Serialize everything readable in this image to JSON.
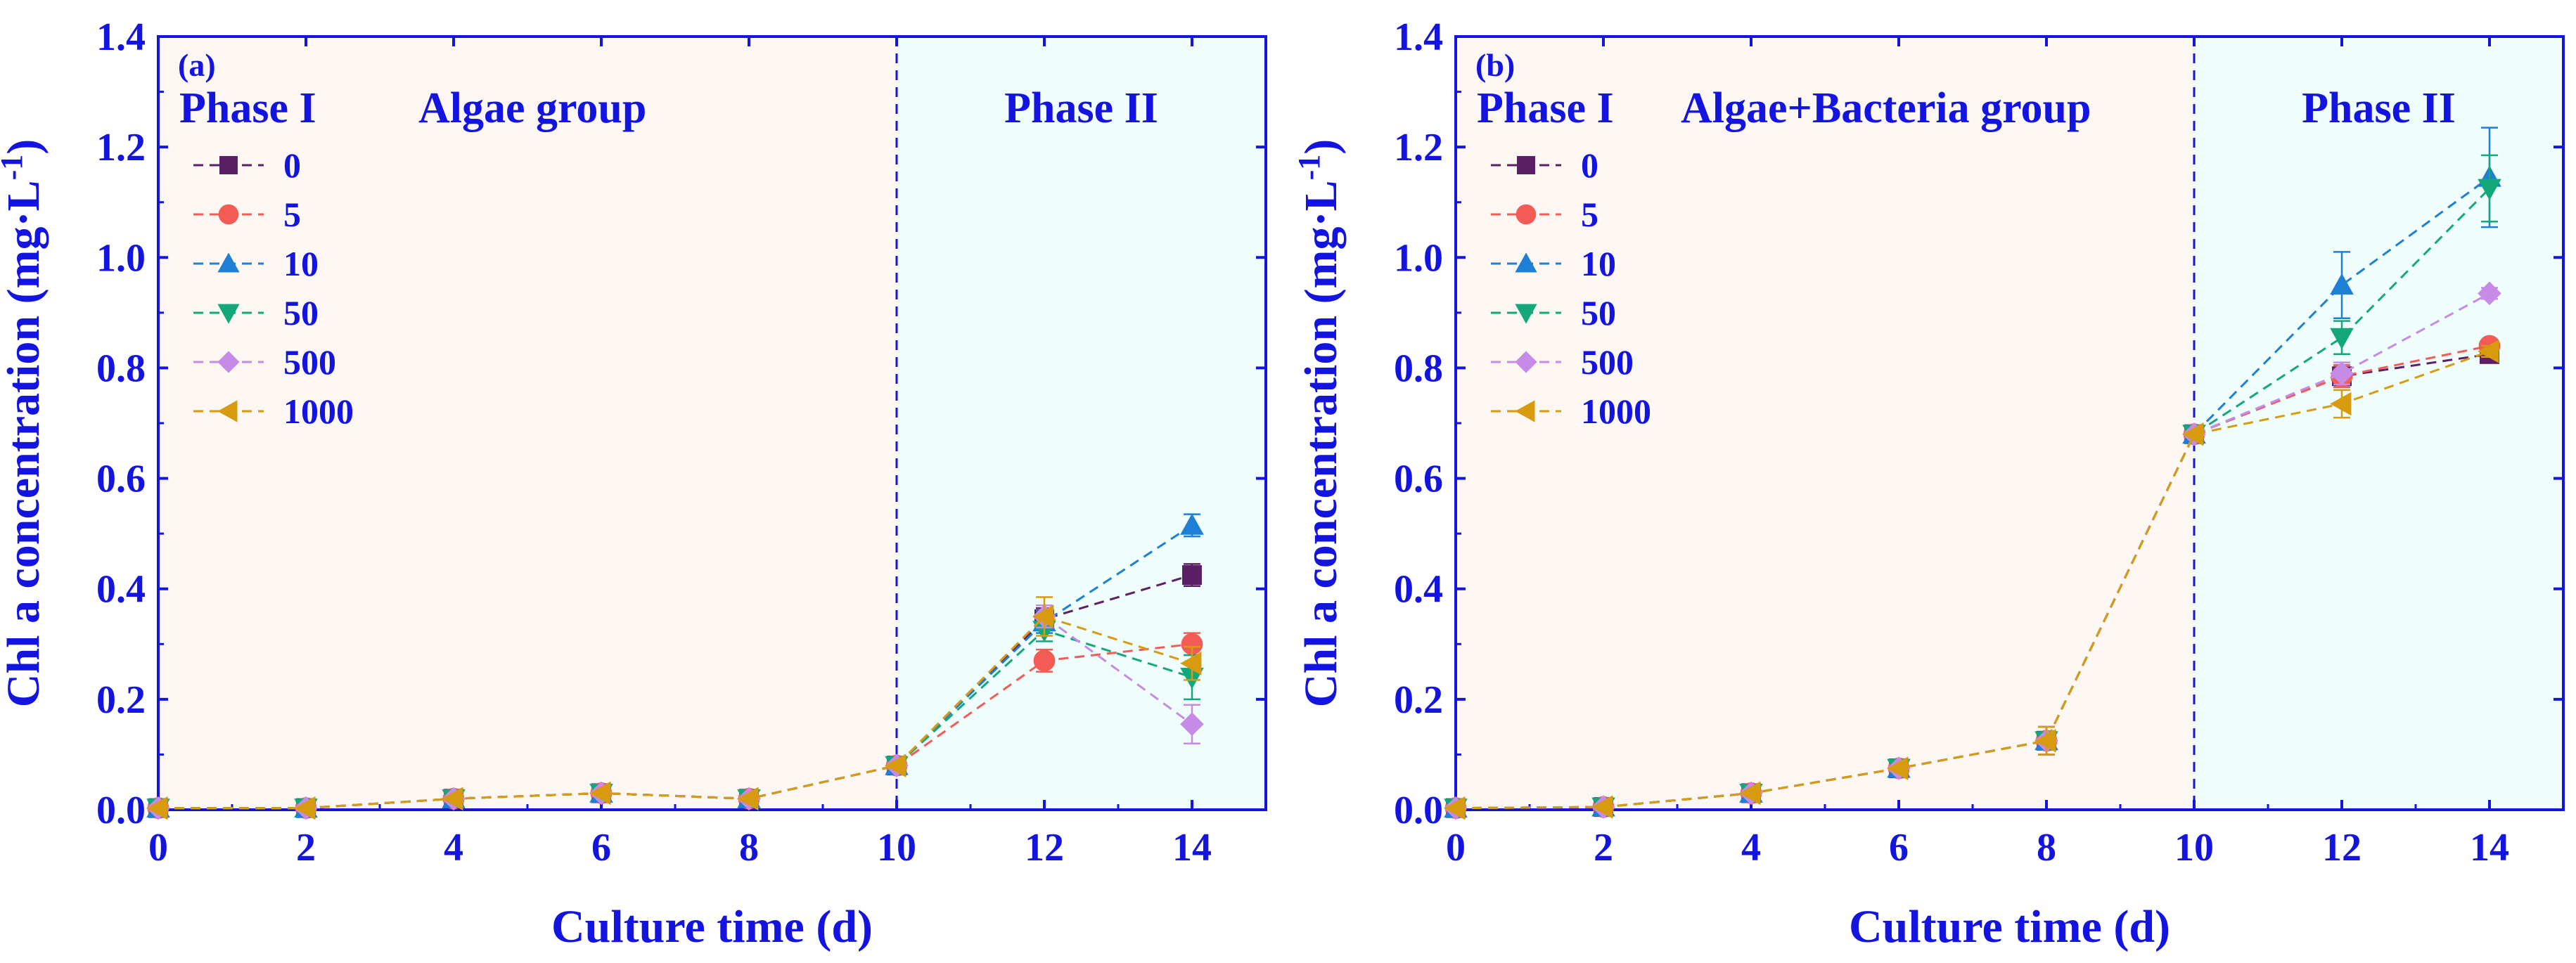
{
  "chart_data": [
    {
      "type": "line",
      "panel_label": "(a)",
      "group_title": "Algae group",
      "phase_labels": [
        "Phase I",
        "Phase II"
      ],
      "phase_boundary_x": 10,
      "xlabel": "Culture time (d)",
      "ylabel_main": "Chl a concentration (mg·L",
      "ylabel_sup": "-1",
      "ylabel_end": ")",
      "xlim": [
        0,
        15
      ],
      "ylim": [
        0,
        1.4
      ],
      "xticks": [
        "0",
        "2",
        "4",
        "6",
        "8",
        "10",
        "12",
        "14"
      ],
      "yticks": [
        "0.0",
        "0.2",
        "0.4",
        "0.6",
        "0.8",
        "1.0",
        "1.2",
        "1.4"
      ],
      "series": [
        {
          "name": "0",
          "color": "#5b1f66",
          "marker": "square",
          "x": [
            0,
            2,
            4,
            6,
            8,
            10,
            12,
            14
          ],
          "y": [
            0.003,
            0.003,
            0.02,
            0.03,
            0.02,
            0.08,
            0.345,
            0.425
          ],
          "err": [
            0,
            0,
            0,
            0,
            0,
            0,
            0.02,
            0.02
          ]
        },
        {
          "name": "5",
          "color": "#f25c54",
          "marker": "circle",
          "x": [
            0,
            2,
            4,
            6,
            8,
            10,
            12,
            14
          ],
          "y": [
            0.003,
            0.003,
            0.02,
            0.03,
            0.02,
            0.08,
            0.27,
            0.3
          ],
          "err": [
            0,
            0,
            0,
            0,
            0,
            0,
            0.02,
            0.02
          ]
        },
        {
          "name": "10",
          "color": "#1e7fd6",
          "marker": "triangle-up",
          "x": [
            0,
            2,
            4,
            6,
            8,
            10,
            12,
            14
          ],
          "y": [
            0.003,
            0.003,
            0.02,
            0.03,
            0.02,
            0.08,
            0.34,
            0.515
          ],
          "err": [
            0,
            0,
            0,
            0,
            0,
            0,
            0.02,
            0.02
          ]
        },
        {
          "name": "50",
          "color": "#13a87a",
          "marker": "triangle-down",
          "x": [
            0,
            2,
            4,
            6,
            8,
            10,
            12,
            14
          ],
          "y": [
            0.003,
            0.003,
            0.02,
            0.03,
            0.02,
            0.08,
            0.325,
            0.24
          ],
          "err": [
            0,
            0,
            0,
            0,
            0,
            0,
            0.02,
            0.04
          ]
        },
        {
          "name": "500",
          "color": "#c58be6",
          "marker": "diamond",
          "x": [
            0,
            2,
            4,
            6,
            8,
            10,
            12,
            14
          ],
          "y": [
            0.003,
            0.003,
            0.02,
            0.03,
            0.02,
            0.08,
            0.35,
            0.155
          ],
          "err": [
            0,
            0,
            0,
            0,
            0,
            0,
            0.02,
            0.035
          ]
        },
        {
          "name": "1000",
          "color": "#d89a0e",
          "marker": "triangle-left",
          "x": [
            0,
            2,
            4,
            6,
            8,
            10,
            12,
            14
          ],
          "y": [
            0.003,
            0.003,
            0.02,
            0.03,
            0.02,
            0.08,
            0.35,
            0.265
          ],
          "err": [
            0,
            0,
            0,
            0,
            0,
            0,
            0.035,
            0.03
          ]
        }
      ]
    },
    {
      "type": "line",
      "panel_label": "(b)",
      "group_title": "Algae+Bacteria group",
      "phase_labels": [
        "Phase I",
        "Phase II"
      ],
      "phase_boundary_x": 10,
      "xlabel": "Culture time (d)",
      "ylabel_main": "Chl a concentration (mg·L",
      "ylabel_sup": "-1",
      "ylabel_end": ")",
      "xlim": [
        0,
        15
      ],
      "ylim": [
        0,
        1.4
      ],
      "xticks": [
        "0",
        "2",
        "4",
        "6",
        "8",
        "10",
        "12",
        "14"
      ],
      "yticks": [
        "0.0",
        "0.2",
        "0.4",
        "0.6",
        "0.8",
        "1.0",
        "1.2",
        "1.4"
      ],
      "series": [
        {
          "name": "0",
          "color": "#5b1f66",
          "marker": "square",
          "x": [
            0,
            2,
            4,
            6,
            8,
            10,
            12,
            14
          ],
          "y": [
            0.003,
            0.005,
            0.03,
            0.075,
            0.125,
            0.68,
            0.785,
            0.825
          ],
          "err": [
            0,
            0,
            0,
            0,
            0.025,
            0,
            0.02,
            0.01
          ]
        },
        {
          "name": "5",
          "color": "#f25c54",
          "marker": "circle",
          "x": [
            0,
            2,
            4,
            6,
            8,
            10,
            12,
            14
          ],
          "y": [
            0.003,
            0.005,
            0.03,
            0.075,
            0.125,
            0.68,
            0.785,
            0.84
          ],
          "err": [
            0,
            0,
            0,
            0,
            0.025,
            0,
            0.02,
            0.01
          ]
        },
        {
          "name": "10",
          "color": "#1e7fd6",
          "marker": "triangle-up",
          "x": [
            0,
            2,
            4,
            6,
            8,
            10,
            12,
            14
          ],
          "y": [
            0.003,
            0.005,
            0.03,
            0.075,
            0.125,
            0.68,
            0.95,
            1.145
          ],
          "err": [
            0,
            0,
            0,
            0,
            0.025,
            0,
            0.06,
            0.09
          ]
        },
        {
          "name": "50",
          "color": "#13a87a",
          "marker": "triangle-down",
          "x": [
            0,
            2,
            4,
            6,
            8,
            10,
            12,
            14
          ],
          "y": [
            0.003,
            0.005,
            0.03,
            0.075,
            0.125,
            0.68,
            0.855,
            1.125
          ],
          "err": [
            0,
            0,
            0,
            0,
            0.025,
            0,
            0.03,
            0.06
          ]
        },
        {
          "name": "500",
          "color": "#c58be6",
          "marker": "diamond",
          "x": [
            0,
            2,
            4,
            6,
            8,
            10,
            12,
            14
          ],
          "y": [
            0.003,
            0.005,
            0.03,
            0.075,
            0.125,
            0.68,
            0.79,
            0.935
          ],
          "err": [
            0,
            0,
            0,
            0,
            0.025,
            0,
            0.02,
            0.01
          ]
        },
        {
          "name": "1000",
          "color": "#d89a0e",
          "marker": "triangle-left",
          "x": [
            0,
            2,
            4,
            6,
            8,
            10,
            12,
            14
          ],
          "y": [
            0.003,
            0.005,
            0.03,
            0.075,
            0.125,
            0.68,
            0.735,
            0.83
          ],
          "err": [
            0,
            0,
            0,
            0,
            0.025,
            0,
            0.025,
            0.01
          ]
        }
      ]
    }
  ],
  "style": {
    "axis_color": "#1414e0",
    "phase1_bg": "#fdf7f3",
    "phase2_bg": "#effdfd"
  }
}
